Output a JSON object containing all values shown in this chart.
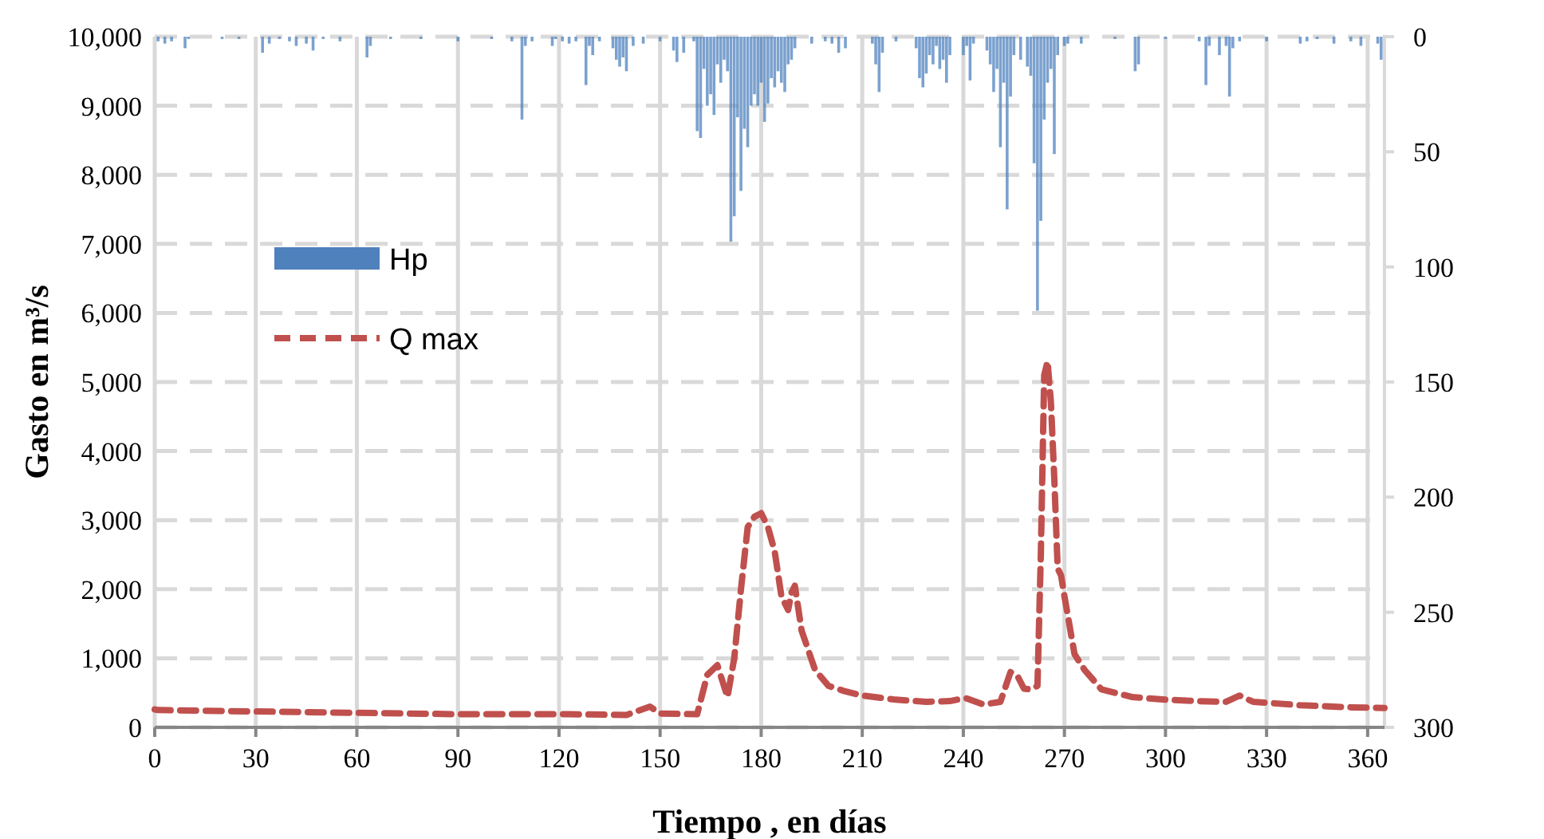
{
  "chart_data": {
    "type": "line",
    "xlabel": "Tiempo , en días",
    "ylabel": "Gasto en m³/s",
    "xlim": [
      0,
      365
    ],
    "xticks": [
      0,
      30,
      60,
      90,
      120,
      150,
      180,
      210,
      240,
      270,
      300,
      330,
      360
    ],
    "ylim": [
      0,
      10000
    ],
    "yticks": [
      {
        "value": 0,
        "label": "0"
      },
      {
        "value": 1000,
        "label": "1,000"
      },
      {
        "value": 2000,
        "label": "2,000"
      },
      {
        "value": 3000,
        "label": "3,000"
      },
      {
        "value": 4000,
        "label": "4,000"
      },
      {
        "value": 5000,
        "label": "5,000"
      },
      {
        "value": 6000,
        "label": "6,000"
      },
      {
        "value": 7000,
        "label": "7,000"
      },
      {
        "value": 8000,
        "label": "8,000"
      },
      {
        "value": 9000,
        "label": "9,000"
      },
      {
        "value": 10000,
        "label": "10,000"
      }
    ],
    "y2lim": [
      300,
      0
    ],
    "y2ticks": [
      0,
      50,
      100,
      150,
      200,
      250,
      300
    ],
    "grid": true,
    "legend": "left",
    "series": [
      {
        "name": "Hp",
        "type": "bar",
        "axis": "y2",
        "color": "#4f81bd",
        "x": [
          1,
          3,
          5,
          9,
          10,
          20,
          25,
          32,
          34,
          37,
          40,
          42,
          45,
          47,
          50,
          55,
          63,
          64,
          70,
          79,
          90,
          100,
          106,
          109,
          110,
          112,
          118,
          119,
          121,
          123,
          125,
          128,
          129,
          130,
          132,
          136,
          137,
          138,
          139,
          140,
          142,
          145,
          150,
          154,
          155,
          157,
          160,
          161,
          162,
          163,
          164,
          165,
          166,
          167,
          168,
          169,
          170,
          171,
          172,
          173,
          174,
          175,
          176,
          177,
          178,
          179,
          180,
          181,
          182,
          183,
          184,
          185,
          186,
          187,
          188,
          189,
          190,
          195,
          199,
          201,
          203,
          205,
          213,
          214,
          215,
          216,
          220,
          226,
          227,
          228,
          229,
          230,
          231,
          232,
          233,
          234,
          235,
          236,
          240,
          241,
          242,
          243,
          247,
          248,
          249,
          250,
          251,
          252,
          253,
          254,
          255,
          257,
          259,
          260,
          261,
          262,
          263,
          264,
          265,
          266,
          267,
          268,
          270,
          271,
          275,
          285,
          291,
          292,
          300,
          310,
          312,
          313,
          316,
          318,
          319,
          320,
          322,
          330,
          340,
          342,
          345,
          350,
          355,
          358,
          363,
          364
        ],
        "values": [
          2,
          3,
          2,
          5,
          1,
          1,
          1,
          7,
          3,
          1,
          2,
          4,
          3,
          6,
          1,
          2,
          9,
          4,
          1,
          1,
          2,
          1,
          2,
          36,
          4,
          2,
          4,
          1,
          2,
          3,
          2,
          21,
          4,
          8,
          2,
          5,
          10,
          13,
          9,
          15,
          4,
          3,
          2,
          6,
          11,
          7,
          2,
          41,
          44,
          14,
          30,
          25,
          34,
          12,
          20,
          10,
          15,
          89,
          78,
          35,
          67,
          40,
          48,
          30,
          25,
          30,
          20,
          37,
          29,
          18,
          22,
          15,
          20,
          24,
          12,
          10,
          5,
          3,
          2,
          3,
          7,
          5,
          3,
          12,
          24,
          7,
          2,
          5,
          18,
          22,
          16,
          8,
          12,
          4,
          14,
          10,
          20,
          8,
          8,
          4,
          19,
          3,
          6,
          12,
          24,
          14,
          48,
          20,
          75,
          26,
          8,
          10,
          13,
          17,
          55,
          119,
          80,
          36,
          20,
          14,
          51,
          8,
          4,
          3,
          3,
          1,
          15,
          12,
          1,
          2,
          21,
          4,
          8,
          4,
          26,
          5,
          2,
          2,
          3,
          2,
          1,
          3,
          2,
          4,
          3,
          10
        ]
      },
      {
        "name": "Q max",
        "color": "#c0504d",
        "line_style": "dashed",
        "x": [
          0,
          1,
          30,
          60,
          91,
          123,
          140,
          147,
          150,
          161,
          164,
          167,
          170,
          172,
          174,
          176,
          178,
          180,
          182,
          184,
          186,
          188,
          189,
          190,
          192,
          196,
          200,
          205,
          210,
          220,
          229,
          236,
          238,
          241,
          246,
          251,
          254,
          256,
          258,
          260,
          262,
          263,
          264,
          265,
          266,
          267,
          268,
          269,
          270,
          273,
          276,
          281,
          290,
          300,
          310,
          318,
          322,
          326,
          340,
          355,
          365
        ],
        "values": [
          260,
          250,
          230,
          210,
          190,
          190,
          180,
          300,
          200,
          190,
          760,
          900,
          440,
          1000,
          2000,
          2900,
          3050,
          3100,
          2900,
          2550,
          1900,
          1700,
          1950,
          2050,
          1400,
          830,
          600,
          520,
          460,
          400,
          370,
          380,
          400,
          420,
          330,
          370,
          800,
          750,
          560,
          550,
          600,
          2500,
          5100,
          5300,
          4700,
          3600,
          2300,
          2200,
          1900,
          1060,
          830,
          550,
          440,
          400,
          380,
          370,
          460,
          370,
          320,
          290,
          280
        ]
      }
    ]
  }
}
